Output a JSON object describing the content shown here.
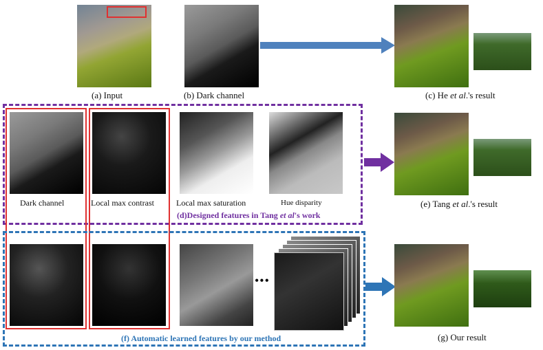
{
  "captions": {
    "a": "(a) Input",
    "b": "(b) Dark channel",
    "c_pre": "(c) He ",
    "c_et": "et al",
    "c_post": ".'s result",
    "e_pre": "(e) Tang ",
    "e_et": "et al",
    "e_post": ".'s result",
    "g": "(g) Our result",
    "dark_channel": "Dark channel",
    "local_max_contrast": "Local max contrast",
    "local_max_saturation": "Local max saturation",
    "hue_disparity": "Hue disparity",
    "d_pre": "(d)Designed  features in Tang ",
    "d_et": "et al",
    "d_post": "'s work",
    "f": "(f) Automatic learned features by our method",
    "ellipsis": "•••"
  },
  "colors": {
    "purple": "#7030a0",
    "blue": "#2e75b6",
    "red": "#e03030",
    "arrow_blue": "#4f81bd",
    "arrow_purple": "#7030a0",
    "arrow_dark_blue": "#2e75b6"
  }
}
